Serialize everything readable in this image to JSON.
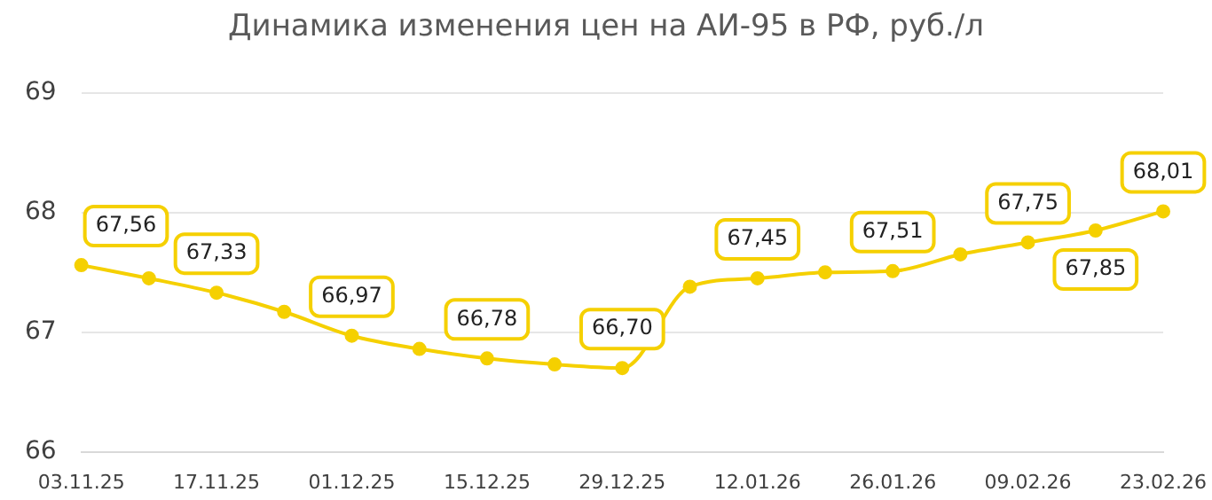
{
  "chart_data": {
    "type": "line",
    "title": "Динамика изменения цен на АИ-95 в РФ, руб./л",
    "categories": [
      "03.11.25",
      null,
      "17.11.25",
      null,
      "01.12.25",
      null,
      "15.12.25",
      null,
      "29.12.25",
      null,
      "12.01.26",
      null,
      "26.01.26",
      null,
      "09.02.26",
      null,
      "23.02.26"
    ],
    "series": [
      {
        "color": "#f5d000",
        "values": [
          67.56,
          67.45,
          67.33,
          67.17,
          66.97,
          66.86,
          66.78,
          66.73,
          66.7,
          67.38,
          67.45,
          67.5,
          67.51,
          67.65,
          67.75,
          67.85,
          68.01
        ],
        "value_labels": [
          "67,56",
          null,
          "67,33",
          null,
          "66,97",
          null,
          "66,78",
          null,
          "66,70",
          null,
          "67,45",
          null,
          "67,51",
          null,
          "67,75",
          "67,85",
          "68,01"
        ]
      }
    ],
    "ylim": [
      66,
      69
    ],
    "yticks": [
      66,
      67,
      68,
      69
    ],
    "grid": "y",
    "legend": false,
    "marker": "circle",
    "line_style": "solid"
  }
}
